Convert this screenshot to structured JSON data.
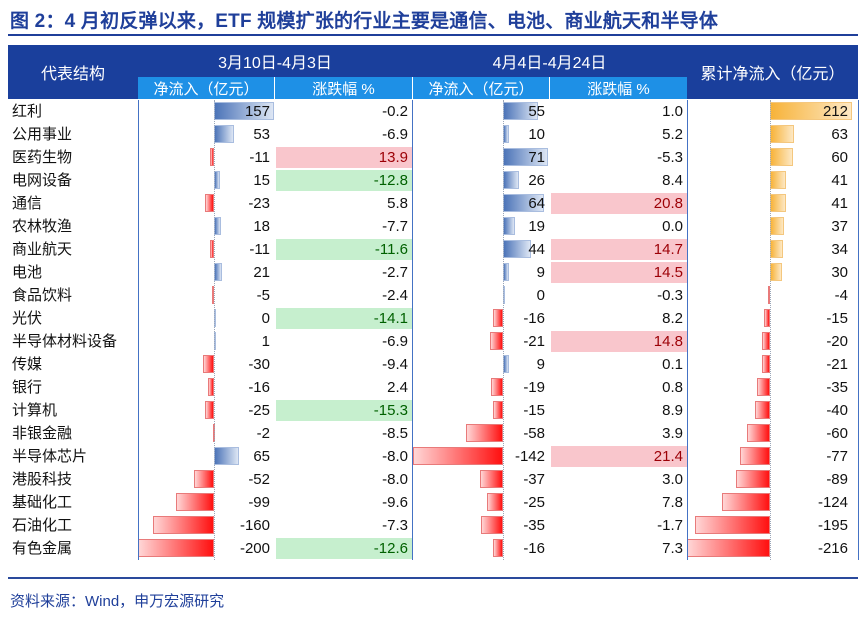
{
  "title": "图 2：4 月初反弹以来，ETF 规模扩张的行业主要是通信、电池、商业航天和半导体",
  "source": "资料来源：Wind，申万宏源研究",
  "chart_data": {
    "type": "table",
    "headers": {
      "category": "代表结构",
      "period1": "3月10日-4月3日",
      "period2": "4月4日-4月24日",
      "inflow": "净流入（亿元）",
      "change": "涨跌幅 %",
      "cumulative": "累计净流入（亿元）"
    },
    "colors": {
      "positive_bar": "#4c74b8",
      "negative_bar": "#ff1010",
      "cumulative_positive_bar": "#f7b33a",
      "highlight_up_bg": "#f9c6cc",
      "highlight_up_text": "#9c0006",
      "highlight_down_bg": "#c6efce",
      "highlight_down_text": "#006100",
      "header": "#1a3f9c",
      "subheader": "#1e90e6"
    },
    "rows": [
      {
        "name": "红利",
        "p1_inflow": 157,
        "p1_change": "-0.2",
        "p2_inflow": 55,
        "p2_change": "1.0",
        "cumulative": 212
      },
      {
        "name": "公用事业",
        "p1_inflow": 53,
        "p1_change": "-6.9",
        "p2_inflow": 10,
        "p2_change": "5.2",
        "cumulative": 63
      },
      {
        "name": "医药生物",
        "p1_inflow": -11,
        "p1_change": "13.9",
        "p2_inflow": 71,
        "p2_change": "-5.3",
        "cumulative": 60
      },
      {
        "name": "电网设备",
        "p1_inflow": 15,
        "p1_change": "-12.8",
        "p2_inflow": 26,
        "p2_change": "8.4",
        "cumulative": 41
      },
      {
        "name": "通信",
        "p1_inflow": -23,
        "p1_change": "5.8",
        "p2_inflow": 64,
        "p2_change": "20.8",
        "cumulative": 41
      },
      {
        "name": "农林牧渔",
        "p1_inflow": 18,
        "p1_change": "-7.7",
        "p2_inflow": 19,
        "p2_change": "0.0",
        "cumulative": 37
      },
      {
        "name": "商业航天",
        "p1_inflow": -11,
        "p1_change": "-11.6",
        "p2_inflow": 44,
        "p2_change": "14.7",
        "cumulative": 34
      },
      {
        "name": "电池",
        "p1_inflow": 21,
        "p1_change": "-2.7",
        "p2_inflow": 9,
        "p2_change": "14.5",
        "cumulative": 30
      },
      {
        "name": "食品饮料",
        "p1_inflow": -5,
        "p1_change": "-2.4",
        "p2_inflow": 0,
        "p2_change": "-0.3",
        "cumulative": -4
      },
      {
        "name": "光伏",
        "p1_inflow": 0,
        "p1_change": "-14.1",
        "p2_inflow": -16,
        "p2_change": "8.2",
        "cumulative": -15
      },
      {
        "name": "半导体材料设备",
        "p1_inflow": 1,
        "p1_change": "-6.9",
        "p2_inflow": -21,
        "p2_change": "14.8",
        "cumulative": -20
      },
      {
        "name": "传媒",
        "p1_inflow": -30,
        "p1_change": "-9.4",
        "p2_inflow": 9,
        "p2_change": "0.1",
        "cumulative": -21
      },
      {
        "name": "银行",
        "p1_inflow": -16,
        "p1_change": "2.4",
        "p2_inflow": -19,
        "p2_change": "0.8",
        "cumulative": -35
      },
      {
        "name": "计算机",
        "p1_inflow": -25,
        "p1_change": "-15.3",
        "p2_inflow": -15,
        "p2_change": "8.9",
        "cumulative": -40
      },
      {
        "name": "非银金融",
        "p1_inflow": -2,
        "p1_change": "-8.5",
        "p2_inflow": -58,
        "p2_change": "3.9",
        "cumulative": -60
      },
      {
        "name": "半导体芯片",
        "p1_inflow": 65,
        "p1_change": "-8.0",
        "p2_inflow": -142,
        "p2_change": "21.4",
        "cumulative": -77
      },
      {
        "name": "港股科技",
        "p1_inflow": -52,
        "p1_change": "-8.0",
        "p2_inflow": -37,
        "p2_change": "3.0",
        "cumulative": -89
      },
      {
        "name": "基础化工",
        "p1_inflow": -99,
        "p1_change": "-9.6",
        "p2_inflow": -25,
        "p2_change": "7.8",
        "cumulative": -124
      },
      {
        "name": "石油化工",
        "p1_inflow": -160,
        "p1_change": "-7.3",
        "p2_inflow": -35,
        "p2_change": "-1.7",
        "cumulative": -195
      },
      {
        "name": "有色金属",
        "p1_inflow": -200,
        "p1_change": "-12.6",
        "p2_inflow": -16,
        "p2_change": "7.3",
        "cumulative": -216
      }
    ]
  }
}
